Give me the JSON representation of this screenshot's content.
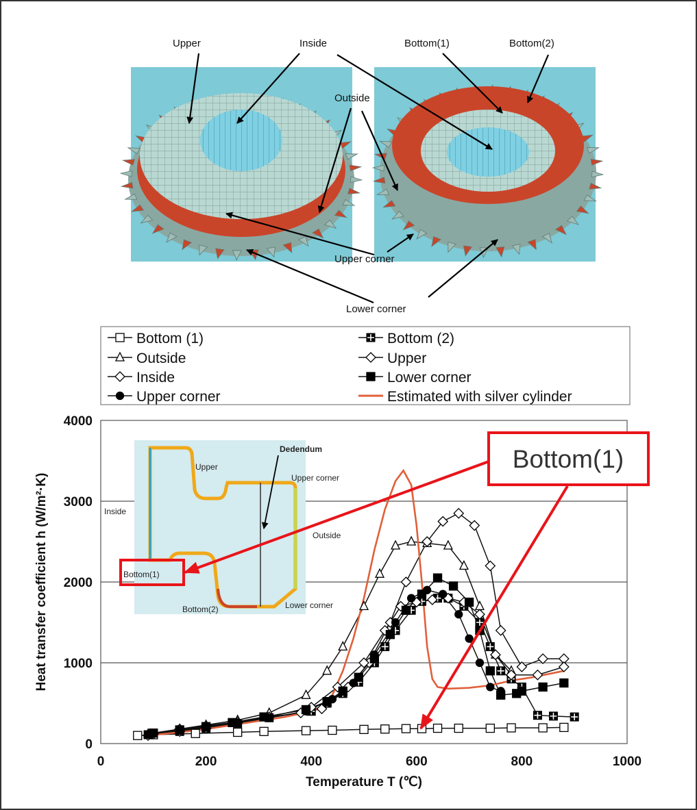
{
  "figure": {
    "gear_labels": {
      "upper": "Upper",
      "inside": "Inside",
      "outside": "Outside",
      "bottom1": "Bottom(1)",
      "bottom2": "Bottom(2)",
      "upper_corner": "Upper corner",
      "lower_corner": "Lower corner"
    },
    "inset_labels": {
      "upper": "Upper",
      "dedendum": "Dedendum",
      "upper_corner": "Upper corner",
      "inside": "Inside",
      "outside": "Outside",
      "bottom1": "Bottom(1)",
      "bottom2": "Bottom(2)",
      "lower_corner": "Lower corner"
    },
    "callout": "Bottom(1)",
    "colors": {
      "inset_bg": "#d4ebef",
      "gear_bg": "#7ecad6",
      "gear_red": "#c9452a",
      "estimated": "#e0603a",
      "callout": "#e8141a"
    }
  },
  "chart_data": {
    "type": "line",
    "xlabel": "Temperature T (℃)",
    "ylabel": "Heat transfer coefficient h (W/m²·K)",
    "xlim": [
      0,
      1000
    ],
    "ylim": [
      0,
      4000
    ],
    "xticks": [
      "0",
      "200",
      "400",
      "600",
      "800",
      "1000"
    ],
    "yticks": [
      "0",
      "1000",
      "2000",
      "3000",
      "4000"
    ],
    "grid": "horizontal",
    "legend_position": "top",
    "series": [
      {
        "name": "Bottom (1)",
        "marker": "square-open",
        "x": [
          70,
          100,
          180,
          260,
          310,
          390,
          440,
          500,
          540,
          580,
          610,
          640,
          680,
          740,
          780,
          840,
          880
        ],
        "y": [
          100,
          110,
          125,
          140,
          150,
          160,
          165,
          175,
          180,
          185,
          185,
          190,
          190,
          190,
          195,
          195,
          200
        ]
      },
      {
        "name": "Bottom (2)",
        "marker": "square-cross",
        "x": [
          90,
          150,
          200,
          260,
          320,
          400,
          430,
          460,
          490,
          520,
          540,
          560,
          590,
          610,
          640,
          660,
          690,
          720,
          740,
          760,
          780,
          800,
          830,
          860,
          900
        ],
        "y": [
          110,
          150,
          190,
          250,
          320,
          400,
          500,
          620,
          760,
          1000,
          1200,
          1400,
          1650,
          1760,
          1800,
          1800,
          1700,
          1500,
          1200,
          900,
          800,
          700,
          350,
          340,
          330
        ]
      },
      {
        "name": "Outside",
        "marker": "triangle-open",
        "x": [
          90,
          150,
          200,
          260,
          320,
          390,
          430,
          460,
          500,
          530,
          560,
          590,
          620,
          660,
          690,
          720,
          750,
          780
        ],
        "y": [
          120,
          180,
          230,
          290,
          380,
          600,
          900,
          1200,
          1700,
          2100,
          2450,
          2500,
          2480,
          2450,
          2200,
          1700,
          1100,
          900
        ]
      },
      {
        "name": "Upper",
        "marker": "diamond-open",
        "x": [
          90,
          150,
          200,
          260,
          320,
          380,
          420,
          470,
          510,
          550,
          580,
          620,
          650,
          680,
          710,
          740,
          760,
          800,
          840,
          880
        ],
        "y": [
          100,
          150,
          190,
          260,
          330,
          380,
          430,
          700,
          1000,
          1500,
          2000,
          2500,
          2750,
          2850,
          2700,
          2200,
          1400,
          950,
          1050,
          1050
        ]
      },
      {
        "name": "Inside",
        "marker": "diamond-open",
        "x": [
          100,
          150,
          200,
          260,
          320,
          400,
          450,
          500,
          540,
          570,
          600,
          630,
          660,
          690,
          720,
          750,
          780,
          830,
          880
        ],
        "y": [
          120,
          180,
          220,
          270,
          330,
          450,
          700,
          1000,
          1400,
          1700,
          1750,
          1780,
          1800,
          1750,
          1600,
          1100,
          850,
          850,
          950
        ]
      },
      {
        "name": "Lower corner",
        "marker": "square-filled",
        "x": [
          100,
          150,
          200,
          250,
          310,
          390,
          430,
          460,
          490,
          520,
          550,
          580,
          610,
          640,
          670,
          700,
          720,
          740,
          760,
          790,
          800,
          840,
          880
        ],
        "y": [
          130,
          170,
          210,
          260,
          330,
          420,
          520,
          650,
          820,
          1050,
          1350,
          1650,
          1850,
          2050,
          1950,
          1750,
          1400,
          900,
          600,
          620,
          650,
          700,
          750
        ]
      },
      {
        "name": "Upper corner",
        "marker": "circle-filled",
        "x": [
          90,
          150,
          200,
          260,
          320,
          390,
          440,
          480,
          520,
          560,
          590,
          620,
          650,
          680,
          700,
          720,
          740,
          760
        ],
        "y": [
          110,
          160,
          200,
          260,
          320,
          400,
          550,
          750,
          1100,
          1500,
          1800,
          1900,
          1850,
          1600,
          1300,
          1000,
          700,
          650
        ]
      },
      {
        "name": "Estimated with silver cylinder",
        "marker": "none",
        "x": [
          90,
          150,
          200,
          250,
          300,
          350,
          400,
          420,
          440,
          460,
          480,
          500,
          520,
          540,
          560,
          575,
          590,
          600,
          610,
          620,
          630,
          640,
          660,
          700,
          740,
          780,
          820,
          880
        ],
        "y": [
          100,
          140,
          180,
          230,
          280,
          330,
          400,
          450,
          600,
          900,
          1300,
          1800,
          2400,
          2900,
          3250,
          3380,
          3200,
          2700,
          2000,
          1200,
          800,
          700,
          680,
          690,
          720,
          780,
          820,
          900
        ]
      }
    ]
  }
}
